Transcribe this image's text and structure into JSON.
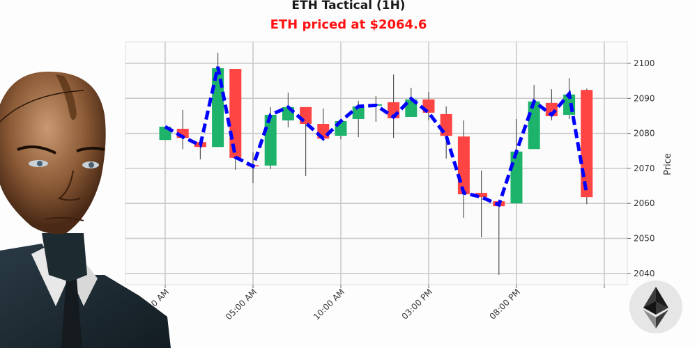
{
  "header": {
    "title": "ETH Tactical (1H)",
    "subtitle": "ETH priced at $2064.6",
    "subtitle_color": "#ff1111"
  },
  "colors": {
    "up": "#1db36b",
    "down": "#ff4444",
    "wick": "#555555",
    "line": "#0000ff",
    "grid": "#c8c8c8",
    "frame": "#dddddd"
  },
  "chart_data": {
    "type": "candlestick",
    "title": "ETH Tactical (1H)",
    "subtitle": "ETH priced at $2064.6",
    "xlabel": "",
    "ylabel": "Price",
    "ylim": [
      2037,
      2106
    ],
    "yticks": [
      2040,
      2050,
      2060,
      2070,
      2080,
      2090,
      2100
    ],
    "xticks": [
      {
        "index": 0,
        "label": "12:00 AM"
      },
      {
        "index": 5,
        "label": "05:00 AM"
      },
      {
        "index": 10,
        "label": "10:00 AM"
      },
      {
        "index": 15,
        "label": "03:00 PM"
      },
      {
        "index": 20,
        "label": "08:00 PM"
      },
      {
        "index": 25,
        "label": ""
      }
    ],
    "grid": true,
    "candles": [
      {
        "o": 2078.1,
        "h": 2081.9,
        "l": 2078.1,
        "c": 2081.9
      },
      {
        "o": 2081.3,
        "h": 2086.7,
        "l": 2075.5,
        "c": 2078.7
      },
      {
        "o": 2077.5,
        "h": 2077.5,
        "l": 2072.6,
        "c": 2076.1
      },
      {
        "o": 2076.1,
        "h": 2103.0,
        "l": 2076.1,
        "c": 2098.6
      },
      {
        "o": 2098.4,
        "h": 2098.4,
        "l": 2069.6,
        "c": 2073.0
      },
      {
        "o": 2070.9,
        "h": 2074.6,
        "l": 2065.8,
        "c": 2070.6
      },
      {
        "o": 2070.8,
        "h": 2087.5,
        "l": 2069.8,
        "c": 2085.3
      },
      {
        "o": 2083.7,
        "h": 2091.6,
        "l": 2081.7,
        "c": 2087.5
      },
      {
        "o": 2087.5,
        "h": 2087.5,
        "l": 2067.8,
        "c": 2082.7
      },
      {
        "o": 2082.7,
        "h": 2087.1,
        "l": 2078.5,
        "c": 2078.5
      },
      {
        "o": 2079.3,
        "h": 2083.5,
        "l": 2078.3,
        "c": 2083.5
      },
      {
        "o": 2084.1,
        "h": 2089.3,
        "l": 2078.9,
        "c": 2087.7
      },
      {
        "o": 2087.9,
        "h": 2090.7,
        "l": 2083.3,
        "c": 2088.3
      },
      {
        "o": 2088.9,
        "h": 2096.8,
        "l": 2078.7,
        "c": 2084.3
      },
      {
        "o": 2084.7,
        "h": 2093.0,
        "l": 2084.7,
        "c": 2089.7
      },
      {
        "o": 2089.7,
        "h": 2091.8,
        "l": 2083.7,
        "c": 2085.9
      },
      {
        "o": 2085.5,
        "h": 2087.7,
        "l": 2072.8,
        "c": 2079.3
      },
      {
        "o": 2079.1,
        "h": 2083.7,
        "l": 2055.9,
        "c": 2062.6
      },
      {
        "o": 2063.0,
        "h": 2069.4,
        "l": 2050.3,
        "c": 2061.8
      },
      {
        "o": 2060.6,
        "h": 2060.6,
        "l": 2039.6,
        "c": 2059.2
      },
      {
        "o": 2060.0,
        "h": 2084.1,
        "l": 2060.0,
        "c": 2074.8
      },
      {
        "o": 2075.5,
        "h": 2093.8,
        "l": 2075.5,
        "c": 2089.1
      },
      {
        "o": 2088.7,
        "h": 2092.6,
        "l": 2083.7,
        "c": 2084.9
      },
      {
        "o": 2085.3,
        "h": 2095.8,
        "l": 2084.1,
        "c": 2091.1
      },
      {
        "o": 2092.4,
        "h": 2092.8,
        "l": 2059.8,
        "c": 2061.8
      }
    ],
    "series": [
      {
        "name": "trend-line",
        "style": "dashed",
        "values": [
          2081.9,
          2079.0,
          2076.6,
          2099.0,
          2073.2,
          2070.6,
          2085.3,
          2087.5,
          2083.0,
          2078.5,
          2083.5,
          2087.7,
          2088.0,
          2084.7,
          2089.9,
          2085.9,
          2079.3,
          2063.0,
          2061.8,
          2059.6,
          2074.8,
          2089.1,
          2085.3,
          2091.3,
          2062.6
        ]
      }
    ]
  },
  "branding": {
    "avatar_alt": "android-businessman-portrait",
    "logo_alt": "ethereum-logo"
  }
}
